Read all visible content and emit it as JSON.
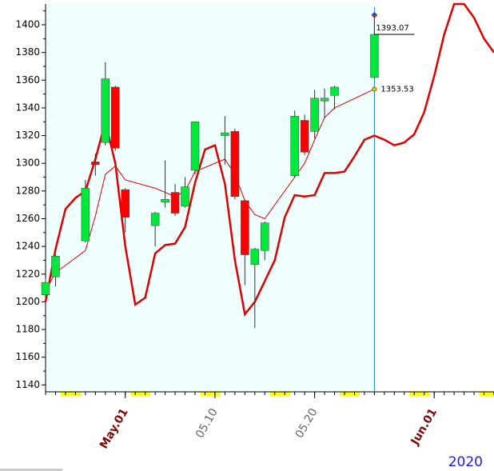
{
  "chart_data": {
    "type": "candlestick",
    "x": [
      "2020-04-23",
      "2020-04-24",
      "2020-04-27",
      "2020-04-28",
      "2020-04-29",
      "2020-04-30",
      "2020-05-01",
      "2020-05-04",
      "2020-05-05",
      "2020-05-06",
      "2020-05-07",
      "2020-05-08",
      "2020-05-11",
      "2020-05-12",
      "2020-05-13",
      "2020-05-14",
      "2020-05-15",
      "2020-05-18",
      "2020-05-19",
      "2020-05-20",
      "2020-05-21",
      "2020-05-22",
      "2020-05-26"
    ],
    "open": [
      1205,
      1218,
      1244,
      1301,
      1315,
      1355,
      1281,
      1255,
      1272,
      1279,
      1269,
      1295,
      1320,
      1323,
      1273,
      1227,
      1237,
      1291,
      1331,
      1323,
      1345,
      1349,
      1362
    ],
    "high": [
      1217,
      1234,
      1288,
      1307,
      1373,
      1356,
      1282,
      1265,
      1302,
      1285,
      1290,
      1330,
      1334,
      1325,
      1274,
      1239,
      1258,
      1338,
      1335,
      1353,
      1354,
      1356,
      1407
    ],
    "low": [
      1203,
      1211,
      1243,
      1291,
      1313,
      1309,
      1250,
      1240,
      1268,
      1262,
      1268,
      1292,
      1299,
      1274,
      1212,
      1181,
      1230,
      1290,
      1306,
      1318,
      1333,
      1339,
      1361
    ],
    "close": [
      1214,
      1233,
      1282,
      1299,
      1361,
      1311,
      1261,
      1264,
      1274,
      1264,
      1283,
      1330,
      1322,
      1276,
      1234,
      1238,
      1257,
      1334,
      1308,
      1347,
      1347,
      1355,
      1393.07
    ],
    "up_color": "#00e83a",
    "down_color": "#ff0000",
    "lines": [
      {
        "color": "#e00000",
        "width": 1,
        "x": [
          "2020-04-23",
          "2020-04-24",
          "2020-04-27",
          "2020-04-28",
          "2020-04-29",
          "2020-04-30",
          "2020-05-01",
          "2020-05-04",
          "2020-05-05",
          "2020-05-06",
          "2020-05-07",
          "2020-05-08",
          "2020-05-11",
          "2020-05-12",
          "2020-05-13",
          "2020-05-14",
          "2020-05-15",
          "2020-05-18",
          "2020-05-19",
          "2020-05-20",
          "2020-05-21",
          "2020-05-22",
          "2020-05-26"
        ],
        "values": [
          1208,
          1221,
          1237,
          1262,
          1292,
          1298,
          1288,
          1282,
          1279,
          1276,
          1280,
          1294,
          1303,
          1292,
          1273,
          1263,
          1260,
          1290,
          1300,
          1317,
          1333,
          1340,
          1353.53
        ]
      },
      {
        "color": "#e00000",
        "width": 2.5,
        "x": [
          "2020-04-23",
          "2020-04-24",
          "2020-04-25",
          "2020-04-26",
          "2020-04-27",
          "2020-04-28",
          "2020-04-29",
          "2020-04-30",
          "2020-05-01",
          "2020-05-02",
          "2020-05-03",
          "2020-05-04",
          "2020-05-05",
          "2020-05-06",
          "2020-05-07",
          "2020-05-08",
          "2020-05-09",
          "2020-05-10",
          "2020-05-11",
          "2020-05-12",
          "2020-05-13",
          "2020-05-14",
          "2020-05-15",
          "2020-05-16",
          "2020-05-17",
          "2020-05-18",
          "2020-05-19",
          "2020-05-20",
          "2020-05-21",
          "2020-05-22",
          "2020-05-23",
          "2020-05-24",
          "2020-05-25",
          "2020-05-26",
          "2020-05-27",
          "2020-05-28",
          "2020-05-29",
          "2020-05-30",
          "2020-05-31",
          "2020-06-01",
          "2020-06-02",
          "2020-06-03",
          "2020-06-04",
          "2020-06-05",
          "2020-06-06",
          "2020-06-07"
        ],
        "values": [
          1200,
          1238,
          1267,
          1275,
          1280,
          1303,
          1330,
          1300,
          1240,
          1198,
          1203,
          1235,
          1241,
          1242,
          1254,
          1286,
          1310,
          1313,
          1285,
          1230,
          1191,
          1200,
          1215,
          1230,
          1261,
          1277,
          1276,
          1277,
          1293,
          1293,
          1294,
          1305,
          1317,
          1320,
          1317,
          1313,
          1315,
          1321,
          1337,
          1363,
          1393,
          1415,
          1415,
          1405,
          1390,
          1380
        ]
      }
    ],
    "xlim": [
      "2020-04-23",
      "2020-06-07"
    ],
    "xticks": [
      {
        "value": "2020-05-01",
        "label": "May.01",
        "color": "#7a0a0a"
      },
      {
        "value": "2020-05-10",
        "label": "05.10",
        "color": "#666666"
      },
      {
        "value": "2020-05-20",
        "label": "05.20",
        "color": "#666666"
      },
      {
        "value": "2020-06-01",
        "label": "Jun.01",
        "color": "#7a0a0a"
      }
    ],
    "ylim": [
      1135,
      1415
    ],
    "yticks": [
      1140,
      1160,
      1180,
      1200,
      1220,
      1240,
      1260,
      1280,
      1300,
      1320,
      1340,
      1360,
      1380,
      1400
    ],
    "year": "2020",
    "history_background": "#effefe"
  }
}
